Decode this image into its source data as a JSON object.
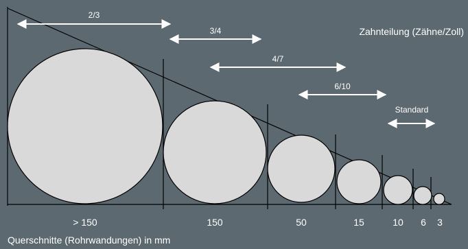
{
  "colors": {
    "background": "#5c6971",
    "line": "#000000",
    "circle_fill": "#d9d9d9",
    "arrow": "#ffffff",
    "text": "#ffffff"
  },
  "legend_title": "Zahnteilung (Zähne/Zoll)",
  "caption": "Querschnitte (Rohrwandungen) in mm",
  "tooth_pitch_ranges": [
    {
      "label": "2/3"
    },
    {
      "label": "3/4"
    },
    {
      "label": "4/7"
    },
    {
      "label": "6/10"
    },
    {
      "label": "Standard"
    }
  ],
  "cross_sections": [
    {
      "label": "> 150"
    },
    {
      "label": "150"
    },
    {
      "label": "50"
    },
    {
      "label": "15"
    },
    {
      "label": "10"
    },
    {
      "label": "6"
    },
    {
      "label": "3"
    }
  ]
}
